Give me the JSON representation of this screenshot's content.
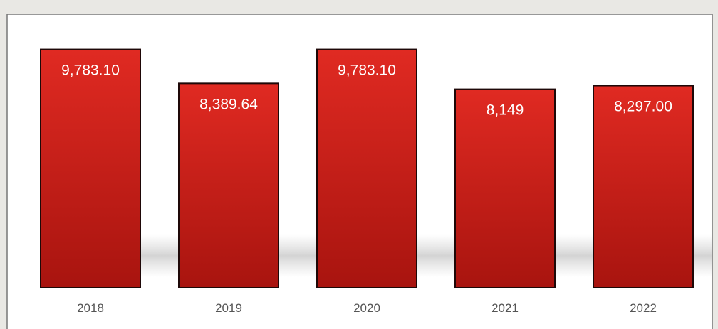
{
  "chart_data": {
    "type": "bar",
    "title": "",
    "xlabel": "",
    "ylabel": "",
    "categories": [
      "2018",
      "2019",
      "2020",
      "2021",
      "2022"
    ],
    "values": [
      9783.1,
      8389.64,
      9783.1,
      8149,
      8297.0
    ],
    "data_labels": [
      "9,783.10",
      "8,389.64",
      "9,783.10",
      "8,149",
      "8,297.00"
    ],
    "ylim": [
      0,
      10500
    ],
    "grid": false,
    "legend": "none",
    "colors": {
      "bar": "#e02a22",
      "bar_dark": "#a8140f",
      "bar_edge": "#1e0808",
      "background": "#ffffff"
    }
  }
}
